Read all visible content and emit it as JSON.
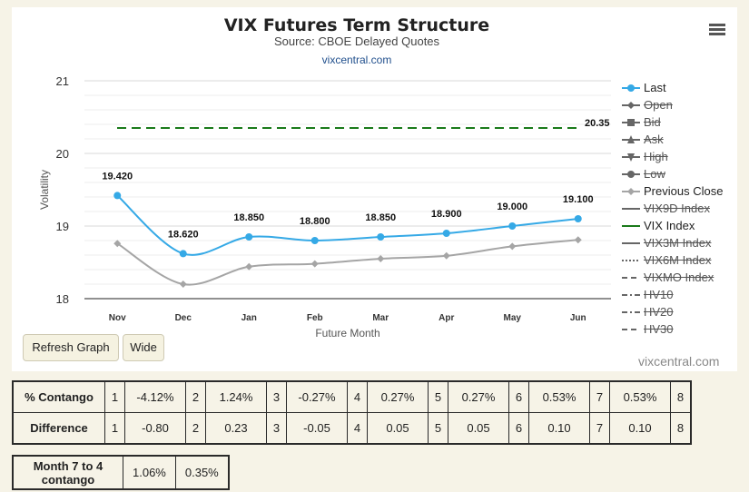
{
  "chart": {
    "title": "VIX Futures Term Structure",
    "subtitle": "Source: CBOE Delayed Quotes",
    "link": "vixcentral.com",
    "watermark": "vixcentral.com"
  },
  "buttons": {
    "refresh": "Refresh Graph",
    "wide": "Wide"
  },
  "chart_data": {
    "type": "line",
    "title": "VIX Futures Term Structure",
    "subtitle": "Source: CBOE Delayed Quotes",
    "xlabel": "Future Month",
    "ylabel": "Volatility",
    "categories": [
      "Nov",
      "Dec",
      "Jan",
      "Feb",
      "Mar",
      "Apr",
      "May",
      "Jun"
    ],
    "ylim": [
      18,
      21
    ],
    "yticks": [
      "18",
      "19",
      "20",
      "21"
    ],
    "grid": true,
    "legend_position": "right",
    "series": [
      {
        "name": "Last",
        "values": [
          19.42,
          18.62,
          18.85,
          18.8,
          18.85,
          18.9,
          19.0,
          19.1
        ],
        "labels": [
          "19.420",
          "18.620",
          "18.850",
          "18.800",
          "18.850",
          "18.900",
          "19.000",
          "19.100"
        ],
        "color": "#35a9e6"
      },
      {
        "name": "Previous Close",
        "values": [
          18.76,
          18.2,
          18.44,
          18.48,
          18.55,
          18.59,
          18.72,
          18.81
        ],
        "color": "#a5a5a5"
      },
      {
        "name": "VIX Index",
        "value": 20.35,
        "label": "20.35",
        "color": "#1a7a1a"
      }
    ]
  },
  "legend": [
    {
      "label": "Last",
      "symbol": "line-circle",
      "color": "#35a9e6",
      "hidden": false
    },
    {
      "label": "Open",
      "symbol": "line-diamond",
      "color": "#666666",
      "hidden": true
    },
    {
      "label": "Bid",
      "symbol": "line-square",
      "color": "#666666",
      "hidden": true
    },
    {
      "label": "Ask",
      "symbol": "line-triangle",
      "color": "#666666",
      "hidden": true
    },
    {
      "label": "High",
      "symbol": "line-triangle-down",
      "color": "#666666",
      "hidden": true
    },
    {
      "label": "Low",
      "symbol": "line-circle",
      "color": "#666666",
      "hidden": true
    },
    {
      "label": "Previous Close",
      "symbol": "line-diamond",
      "color": "#a5a5a5",
      "hidden": false
    },
    {
      "label": "VIX9D Index",
      "symbol": "line",
      "color": "#666666",
      "hidden": true
    },
    {
      "label": "VIX Index",
      "symbol": "line",
      "color": "#1a7a1a",
      "hidden": false
    },
    {
      "label": "VIX3M Index",
      "symbol": "line",
      "color": "#666666",
      "hidden": true
    },
    {
      "label": "VIX6M Index",
      "symbol": "dotted",
      "color": "#666666",
      "hidden": true
    },
    {
      "label": "VIXMO Index",
      "symbol": "dashed",
      "color": "#666666",
      "hidden": true
    },
    {
      "label": "HV10",
      "symbol": "dashdot",
      "color": "#666666",
      "hidden": true
    },
    {
      "label": "HV20",
      "symbol": "dashdot",
      "color": "#666666",
      "hidden": true
    },
    {
      "label": "HV30",
      "symbol": "dashed",
      "color": "#666666",
      "hidden": true
    }
  ],
  "contango_table": {
    "rows": [
      {
        "header": "% Contango",
        "cells": [
          [
            "1",
            "-4.12%"
          ],
          [
            "2",
            "1.24%"
          ],
          [
            "3",
            "-0.27%"
          ],
          [
            "4",
            "0.27%"
          ],
          [
            "5",
            "0.27%"
          ],
          [
            "6",
            "0.53%"
          ],
          [
            "7",
            "0.53%"
          ],
          [
            "8",
            ""
          ]
        ]
      },
      {
        "header": "Difference",
        "cells": [
          [
            "1",
            "-0.80"
          ],
          [
            "2",
            "0.23"
          ],
          [
            "3",
            "-0.05"
          ],
          [
            "4",
            "0.05"
          ],
          [
            "5",
            "0.05"
          ],
          [
            "6",
            "0.10"
          ],
          [
            "7",
            "0.10"
          ],
          [
            "8",
            ""
          ]
        ]
      }
    ]
  },
  "month7_table": {
    "header": "Month 7 to 4 contango",
    "values": [
      "1.06%",
      "0.35%"
    ]
  }
}
